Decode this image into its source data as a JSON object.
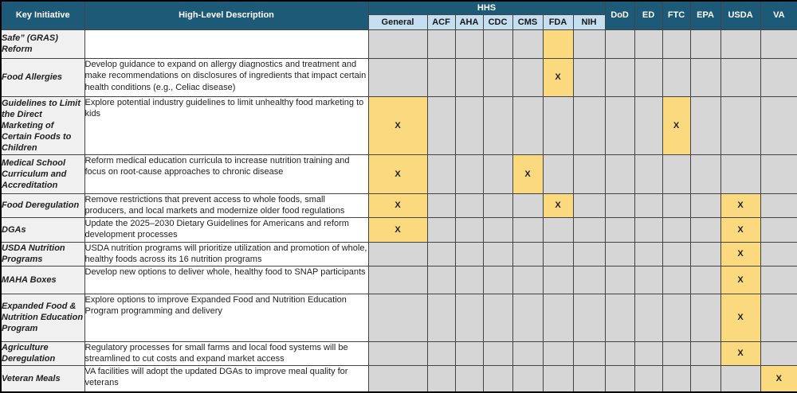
{
  "colors": {
    "header_bg": "#1D5A78",
    "header_text": "#FFFFFF",
    "subheader_bg": "#C5DFF0",
    "initiative_col_bg": "#F0F0F0",
    "description_col_bg": "#FFFFFF",
    "matrix_cell_bg": "#D6D6D6",
    "highlight_bg": "#FBD97E",
    "border": "#444444"
  },
  "header": {
    "key_initiative": "Key Initiative",
    "description": "High-Level Description",
    "hhs_group": "HHS",
    "hhs_subcolumns": [
      "General",
      "ACF",
      "AHA",
      "CDC",
      "CMS",
      "FDA",
      "NIH"
    ],
    "agency_columns": [
      "DoD",
      "ED",
      "FTC",
      "EPA",
      "USDA",
      "VA"
    ]
  },
  "matrix_columns": [
    "General",
    "ACF",
    "AHA",
    "CDC",
    "CMS",
    "FDA",
    "NIH",
    "DoD",
    "ED",
    "FTC",
    "EPA",
    "USDA",
    "VA"
  ],
  "mark_symbol": "X",
  "rows": [
    {
      "initiative": "Safe” (GRAS) Reform",
      "description": "",
      "x_columns": [],
      "highlight_columns": [
        "FDA"
      ]
    },
    {
      "initiative": "Food Allergies",
      "description": "Develop guidance to expand on allergy diagnostics and treatment and make recommendations on disclosures of ingredients that impact certain health conditions (e.g., Celiac disease)",
      "x_columns": [
        "FDA"
      ],
      "highlight_columns": []
    },
    {
      "initiative": "Guidelines to Limit the Direct Marketing of Certain Foods to Children",
      "description": "Explore potential industry guidelines to limit unhealthy food marketing to kids",
      "x_columns": [
        "General",
        "FTC"
      ],
      "highlight_columns": []
    },
    {
      "initiative": "Medical School Curriculum and Accreditation",
      "description": "Reform medical education curricula to increase nutrition training and focus on root-cause approaches to chronic disease",
      "x_columns": [
        "General",
        "CMS"
      ],
      "highlight_columns": []
    },
    {
      "initiative": "Food Deregulation",
      "description": "Remove restrictions that prevent access to whole foods, small producers, and local markets and modernize older food regulations",
      "x_columns": [
        "General",
        "FDA",
        "USDA"
      ],
      "highlight_columns": []
    },
    {
      "initiative": "DGAs",
      "description": "Update the 2025–2030 Dietary Guidelines for Americans and reform development processes",
      "x_columns": [
        "General",
        "USDA"
      ],
      "highlight_columns": []
    },
    {
      "initiative": "USDA Nutrition Programs",
      "description": "USDA nutrition programs will prioritize utilization and promotion of whole, healthy foods across its 16 nutrition programs",
      "x_columns": [
        "USDA"
      ],
      "highlight_columns": []
    },
    {
      "initiative": "MAHA Boxes",
      "description": "Develop new options to deliver whole, healthy food to SNAP participants",
      "x_columns": [
        "USDA"
      ],
      "highlight_columns": []
    },
    {
      "initiative": "Expanded Food & Nutrition Education Program",
      "description": "Explore options to improve Expanded Food and Nutrition Education Program programming and delivery",
      "x_columns": [
        "USDA"
      ],
      "highlight_columns": []
    },
    {
      "initiative": "Agriculture Deregulation",
      "description": "Regulatory processes for small farms and local food systems will be streamlined to cut costs and expand market access",
      "x_columns": [
        "USDA"
      ],
      "highlight_columns": []
    },
    {
      "initiative": "Veteran Meals",
      "description": "VA facilities will adopt the updated DGAs to improve meal quality for veterans",
      "x_columns": [
        "VA"
      ],
      "highlight_columns": []
    }
  ]
}
